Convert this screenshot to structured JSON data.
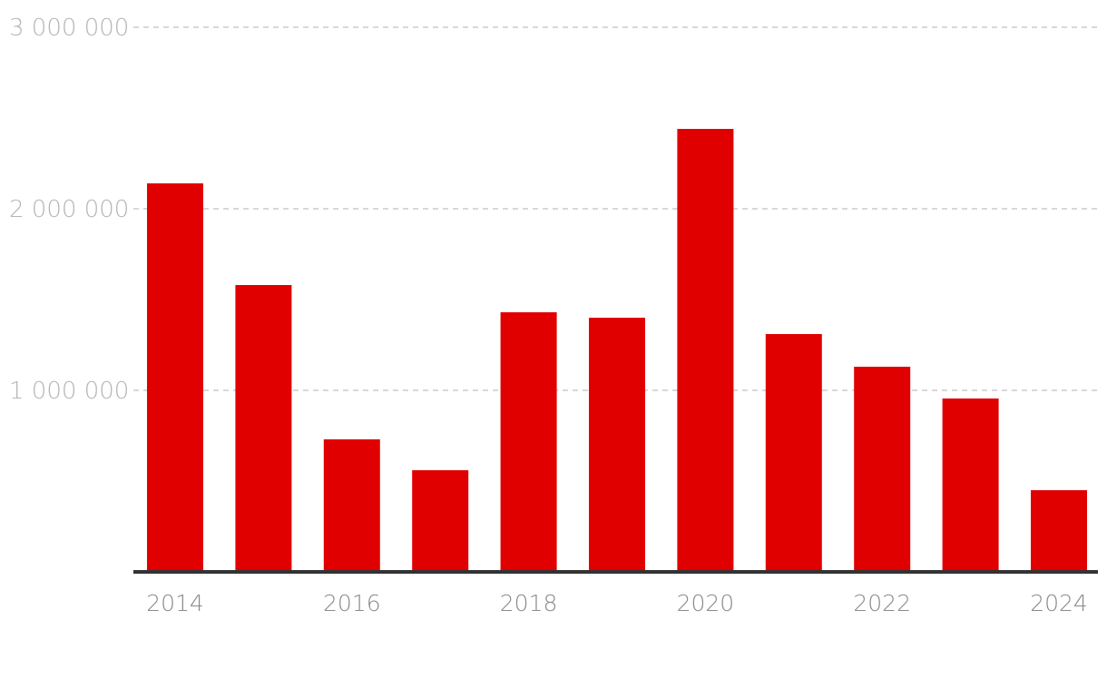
{
  "chart_data": {
    "type": "bar",
    "title": "",
    "xlabel": "",
    "ylabel": "",
    "categories": [
      "2014",
      "2015",
      "2016",
      "2017",
      "2018",
      "2019",
      "2020",
      "2021",
      "2022",
      "2023",
      "2024"
    ],
    "values": [
      2140000,
      1580000,
      730000,
      560000,
      1430000,
      1400000,
      2440000,
      1310000,
      1130000,
      955000,
      450000
    ],
    "ylim": [
      0,
      3000000
    ],
    "y_ticks": [
      {
        "value": 1000000,
        "label": "1 000 000"
      },
      {
        "value": 2000000,
        "label": "2 000 000"
      },
      {
        "value": 3000000,
        "label": "3 000 000"
      }
    ],
    "x_tick_labels": [
      "2014",
      "",
      "2016",
      "",
      "2018",
      "",
      "2020",
      "",
      "2022",
      "",
      "2024"
    ],
    "grid": true,
    "legend": "none",
    "colors": {
      "bar": "#e00000",
      "grid": "#cccccc",
      "axis": "#333333",
      "y_label": "#b5b5b5",
      "x_label": "#8a8a8a"
    }
  }
}
